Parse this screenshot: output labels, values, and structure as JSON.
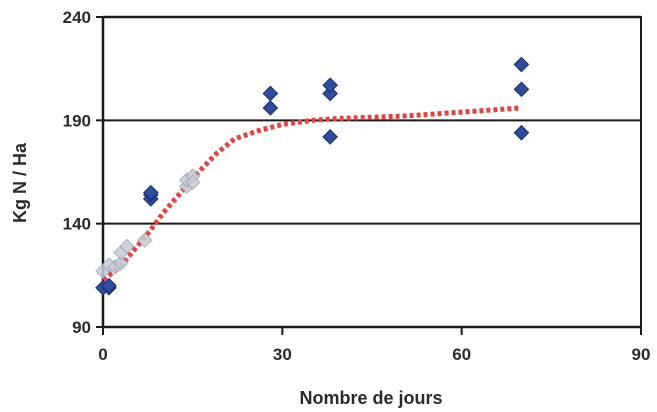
{
  "chart_data": {
    "type": "scatter",
    "title": "",
    "xlabel": "Nombre de jours",
    "ylabel": "Kg N / Ha",
    "xlim": [
      0,
      90
    ],
    "ylim": [
      90,
      240
    ],
    "x_ticks": [
      "0",
      "30",
      "60",
      "90"
    ],
    "y_ticks": [
      "90",
      "140",
      "190",
      "240"
    ],
    "grid": "horizontal",
    "legend": "none",
    "series": [
      {
        "marker": "diamond",
        "color": "#2f4d9a",
        "points": [
          [
            0,
            109
          ],
          [
            1,
            109
          ],
          [
            1,
            110
          ],
          [
            8,
            152
          ],
          [
            8,
            154
          ],
          [
            8,
            155
          ],
          [
            28,
            196
          ],
          [
            28,
            203
          ],
          [
            38,
            182
          ],
          [
            38,
            203
          ],
          [
            38,
            207
          ],
          [
            70,
            184
          ],
          [
            70,
            205
          ],
          [
            70,
            217
          ]
        ]
      },
      {
        "marker": "diamond-faded",
        "color": "#c6ccd8",
        "points": [
          [
            0,
            117
          ],
          [
            1,
            120
          ],
          [
            2,
            119
          ],
          [
            3,
            121
          ],
          [
            3,
            126
          ],
          [
            4,
            129
          ],
          [
            7,
            132
          ],
          [
            14,
            158
          ],
          [
            14,
            161
          ],
          [
            15,
            163
          ],
          [
            15,
            160
          ]
        ]
      }
    ],
    "trendline": {
      "style": "dotted",
      "color": "#e8423f",
      "points": [
        [
          0,
          113
        ],
        [
          2,
          117
        ],
        [
          4,
          123
        ],
        [
          6,
          130
        ],
        [
          8,
          137
        ],
        [
          10,
          145
        ],
        [
          13,
          155
        ],
        [
          16,
          165
        ],
        [
          19,
          174
        ],
        [
          22,
          181
        ],
        [
          26,
          185
        ],
        [
          30,
          188
        ],
        [
          35,
          190
        ],
        [
          40,
          191
        ],
        [
          50,
          192
        ],
        [
          60,
          194
        ],
        [
          65,
          195
        ],
        [
          70,
          196
        ]
      ]
    }
  }
}
